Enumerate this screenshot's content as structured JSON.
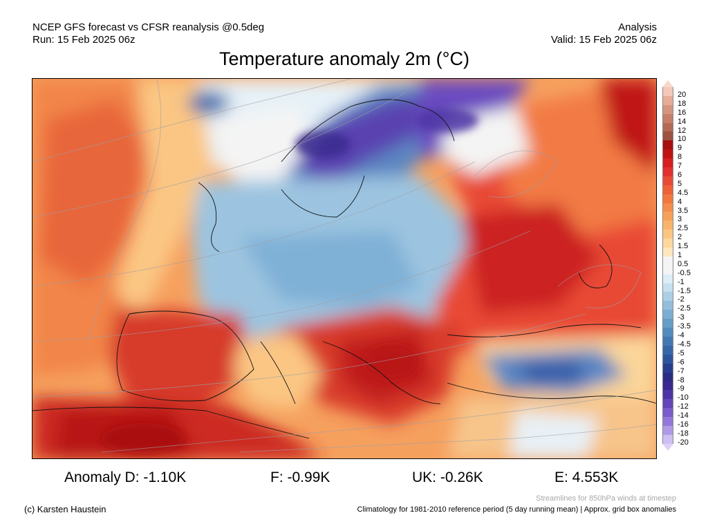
{
  "header": {
    "left_line1": "NCEP GFS forecast vs CFSR reanalysis @0.5deg",
    "left_line2": "Run: 15 Feb 2025 06z",
    "right_line1": "Analysis",
    "right_line2": "Valid: 15 Feb 2025 06z"
  },
  "title": "Temperature anomaly 2m (°C)",
  "legend": {
    "items": [
      {
        "label": "20",
        "color": "#f3c8b8"
      },
      {
        "label": "18",
        "color": "#e6ad98"
      },
      {
        "label": "16",
        "color": "#d69580"
      },
      {
        "label": "14",
        "color": "#c57e68"
      },
      {
        "label": "12",
        "color": "#b36a55"
      },
      {
        "label": "10",
        "color": "#9e5242"
      },
      {
        "label": "9",
        "color": "#a80f0f"
      },
      {
        "label": "8",
        "color": "#bf1414"
      },
      {
        "label": "7",
        "color": "#d42020"
      },
      {
        "label": "6",
        "color": "#e03030"
      },
      {
        "label": "5",
        "color": "#e84a35"
      },
      {
        "label": "4.5",
        "color": "#ee6038"
      },
      {
        "label": "4",
        "color": "#f2763e"
      },
      {
        "label": "3.5",
        "color": "#f58c4c"
      },
      {
        "label": "3",
        "color": "#f7a05a"
      },
      {
        "label": "2.5",
        "color": "#f9b46c"
      },
      {
        "label": "2",
        "color": "#fbc683"
      },
      {
        "label": "1.5",
        "color": "#fdd79d"
      },
      {
        "label": "1",
        "color": "#fee7bd"
      },
      {
        "label": "0.5",
        "color": "#f4f4f4"
      },
      {
        "label": "-0.5",
        "color": "#f4f4f4"
      },
      {
        "label": "-1",
        "color": "#dcedf7"
      },
      {
        "label": "-1.5",
        "color": "#c5e1f0"
      },
      {
        "label": "-2",
        "color": "#accfe5"
      },
      {
        "label": "-2.5",
        "color": "#94bedb"
      },
      {
        "label": "-3",
        "color": "#7caed1"
      },
      {
        "label": "-3.5",
        "color": "#669dc7"
      },
      {
        "label": "-4",
        "color": "#528bbd"
      },
      {
        "label": "-4.5",
        "color": "#4379b3"
      },
      {
        "label": "-5",
        "color": "#3867a8"
      },
      {
        "label": "-6",
        "color": "#2e559c"
      },
      {
        "label": "-7",
        "color": "#283f8e"
      },
      {
        "label": "-8",
        "color": "#2a2d84"
      },
      {
        "label": "-9",
        "color": "#3a2a90"
      },
      {
        "label": "-10",
        "color": "#4d35a6"
      },
      {
        "label": "-12",
        "color": "#6246ba"
      },
      {
        "label": "-14",
        "color": "#7a5ccb"
      },
      {
        "label": "-16",
        "color": "#9478d9"
      },
      {
        "label": "-18",
        "color": "#b09ae6"
      },
      {
        "label": "-20",
        "color": "#cdbff1"
      }
    ]
  },
  "stats": {
    "d": "Anomaly D: -1.10K",
    "f": "F: -0.99K",
    "uk": "UK: -0.26K",
    "e": "E: 4.553K"
  },
  "footer": {
    "streamlines": "Streamlines for 850hPa winds at timestep",
    "climatology": "Climatology for 1981-2010 reference period (5 day running mean) | Approx. grid box anomalies",
    "copyright": "(c) Karsten Haustein"
  }
}
